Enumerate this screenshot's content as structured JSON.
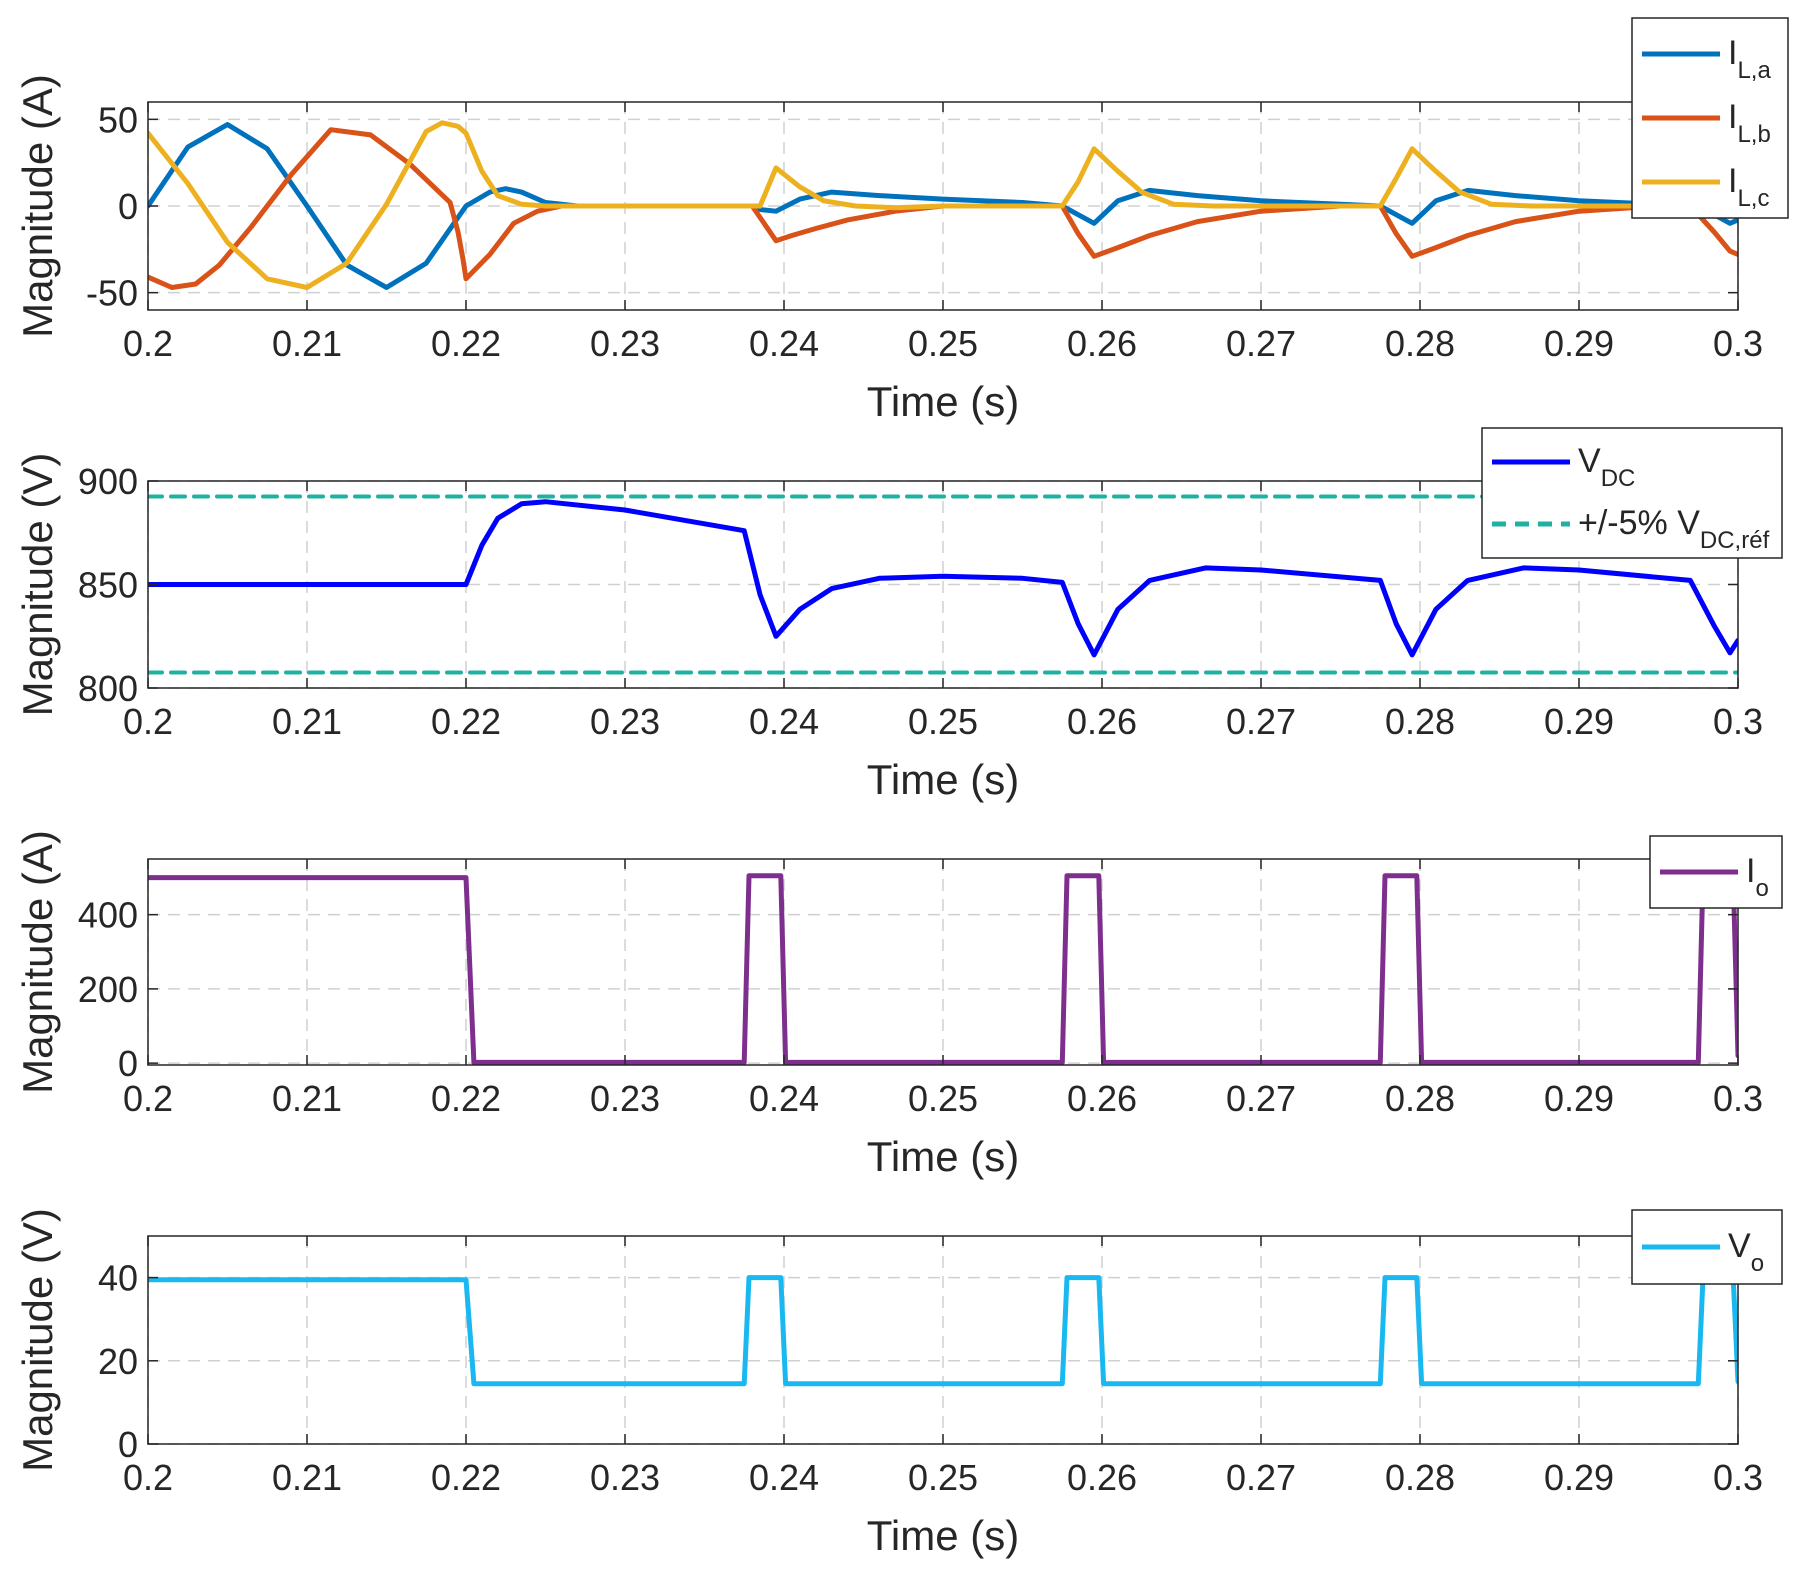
{
  "figure": {
    "colors": {
      "axis": "#262626",
      "grid": "#d0d0d0",
      "background": "#ffffff"
    }
  },
  "chart_data": [
    {
      "type": "line",
      "xlabel": "Time (s)",
      "ylabel": "Magnitude (A)",
      "xlim": [
        0.2,
        0.3
      ],
      "ylim": [
        -60,
        60
      ],
      "xticks": [
        0.2,
        0.21,
        0.22,
        0.23,
        0.24,
        0.25,
        0.26,
        0.27,
        0.28,
        0.29,
        0.3
      ],
      "xtick_labels": [
        "0.2",
        "0.21",
        "0.22",
        "0.23",
        "0.24",
        "0.25",
        "0.26",
        "0.27",
        "0.28",
        "0.29",
        "0.3"
      ],
      "yticks": [
        -50,
        0,
        50
      ],
      "ytick_labels": [
        "-50",
        "0",
        "50"
      ],
      "grid": true,
      "legend_position": "top-right",
      "series": [
        {
          "name": "I_L,a",
          "label_main": "I",
          "label_sub": "L,a",
          "color": "#0072BD",
          "x": [
            0.2,
            0.2025,
            0.205,
            0.2075,
            0.21,
            0.2125,
            0.215,
            0.2175,
            0.22,
            0.2215,
            0.2225,
            0.2235,
            0.225,
            0.227,
            0.23,
            0.235,
            0.238,
            0.2385,
            0.2395,
            0.241,
            0.243,
            0.246,
            0.25,
            0.255,
            0.2575,
            0.2585,
            0.2595,
            0.261,
            0.263,
            0.266,
            0.27,
            0.275,
            0.2775,
            0.2785,
            0.2795,
            0.281,
            0.283,
            0.286,
            0.29,
            0.295,
            0.297,
            0.2985,
            0.2995,
            0.3
          ],
          "y": [
            0,
            34,
            47,
            33,
            0,
            -34,
            -47,
            -33,
            0,
            8,
            10,
            8,
            2,
            0,
            0,
            0,
            0,
            -2,
            -3,
            4,
            8,
            6,
            4,
            2,
            0,
            -5,
            -10,
            3,
            9,
            6,
            3,
            1,
            0,
            -5,
            -10,
            3,
            9,
            6,
            3,
            1,
            0,
            -5,
            -10,
            -8
          ]
        },
        {
          "name": "I_L,b",
          "label_main": "I",
          "label_sub": "L,b",
          "color": "#D95319",
          "x": [
            0.2,
            0.2015,
            0.203,
            0.2045,
            0.2065,
            0.209,
            0.2115,
            0.214,
            0.2165,
            0.219,
            0.2195,
            0.2198,
            0.22,
            0.2215,
            0.223,
            0.2245,
            0.226,
            0.228,
            0.232,
            0.236,
            0.238,
            0.2395,
            0.2405,
            0.242,
            0.244,
            0.247,
            0.25,
            0.255,
            0.2575,
            0.2585,
            0.2595,
            0.261,
            0.263,
            0.266,
            0.27,
            0.275,
            0.2775,
            0.2785,
            0.2795,
            0.281,
            0.283,
            0.286,
            0.29,
            0.295,
            0.297,
            0.2985,
            0.2995,
            0.3
          ],
          "y": [
            -41,
            -47,
            -45,
            -34,
            -12,
            18,
            44,
            41,
            24,
            2,
            -15,
            -30,
            -42,
            -28,
            -10,
            -3,
            0,
            0,
            0,
            0,
            0,
            -20,
            -17,
            -13,
            -8,
            -3,
            0,
            0,
            0,
            -16,
            -29,
            -24,
            -17,
            -9,
            -3,
            0,
            0,
            -16,
            -29,
            -24,
            -17,
            -9,
            -3,
            0,
            0,
            -15,
            -26,
            -28
          ]
        },
        {
          "name": "I_L,c",
          "label_main": "I",
          "label_sub": "L,c",
          "color": "#EDB120",
          "x": [
            0.2,
            0.2025,
            0.205,
            0.2075,
            0.21,
            0.2125,
            0.215,
            0.2175,
            0.2185,
            0.2195,
            0.22,
            0.221,
            0.222,
            0.2235,
            0.225,
            0.23,
            0.235,
            0.2385,
            0.2395,
            0.241,
            0.2425,
            0.2445,
            0.247,
            0.25,
            0.255,
            0.2575,
            0.2585,
            0.2595,
            0.261,
            0.2625,
            0.2645,
            0.267,
            0.27,
            0.275,
            0.2775,
            0.2785,
            0.2795,
            0.281,
            0.2825,
            0.2845,
            0.287,
            0.29,
            0.295,
            0.2975,
            0.299,
            0.3
          ],
          "y": [
            42,
            13,
            -21,
            -42,
            -47,
            -33,
            1,
            43,
            48,
            46,
            42,
            20,
            6,
            1,
            0,
            0,
            0,
            0,
            22,
            11,
            3,
            0,
            -1,
            0,
            0,
            0,
            14,
            33,
            20,
            8,
            1,
            0,
            0,
            0,
            0,
            16,
            33,
            20,
            8,
            1,
            0,
            0,
            0,
            0,
            0,
            0
          ]
        }
      ]
    },
    {
      "type": "line",
      "xlabel": "Time (s)",
      "ylabel": "Magnitude (V)",
      "xlim": [
        0.2,
        0.3
      ],
      "ylim": [
        800,
        900
      ],
      "xticks": [
        0.2,
        0.21,
        0.22,
        0.23,
        0.24,
        0.25,
        0.26,
        0.27,
        0.28,
        0.29,
        0.3
      ],
      "xtick_labels": [
        "0.2",
        "0.21",
        "0.22",
        "0.23",
        "0.24",
        "0.25",
        "0.26",
        "0.27",
        "0.28",
        "0.29",
        "0.3"
      ],
      "yticks": [
        800,
        850,
        900
      ],
      "ytick_labels": [
        "800",
        "850",
        "900"
      ],
      "grid": true,
      "legend_position": "top-right",
      "series": [
        {
          "name": "V_DC",
          "label_main": "V",
          "label_sub": "DC",
          "color": "#0000FF",
          "dash": false,
          "x": [
            0.2,
            0.21,
            0.22,
            0.221,
            0.222,
            0.2235,
            0.225,
            0.23,
            0.2375,
            0.2385,
            0.2395,
            0.241,
            0.243,
            0.246,
            0.25,
            0.255,
            0.2575,
            0.2585,
            0.2595,
            0.261,
            0.263,
            0.2665,
            0.27,
            0.2775,
            0.2785,
            0.2795,
            0.281,
            0.283,
            0.2865,
            0.29,
            0.297,
            0.2985,
            0.2995,
            0.3
          ],
          "y": [
            850,
            850,
            850,
            869,
            882,
            889,
            890,
            886,
            876,
            845,
            825,
            838,
            848,
            853,
            854,
            853,
            851,
            831,
            816,
            838,
            852,
            858,
            857,
            852,
            831,
            816,
            838,
            852,
            858,
            857,
            852,
            830,
            817,
            823
          ]
        },
        {
          "name": "+/-5% V_DC,réf",
          "label_main": "+/-5% V",
          "label_sub": "DC,réf",
          "color": "#20B2A0",
          "dash": true,
          "x": [
            0.2,
            0.3
          ],
          "y": [
            892.5,
            892.5
          ],
          "y2": [
            807.5,
            807.5
          ]
        }
      ]
    },
    {
      "type": "line",
      "xlabel": "Time (s)",
      "ylabel": "Magnitude (A)",
      "xlim": [
        0.2,
        0.3
      ],
      "ylim": [
        -5,
        550
      ],
      "xticks": [
        0.2,
        0.21,
        0.22,
        0.23,
        0.24,
        0.25,
        0.26,
        0.27,
        0.28,
        0.29,
        0.3
      ],
      "xtick_labels": [
        "0.2",
        "0.21",
        "0.22",
        "0.23",
        "0.24",
        "0.25",
        "0.26",
        "0.27",
        "0.28",
        "0.29",
        "0.3"
      ],
      "yticks": [
        0,
        200,
        400
      ],
      "ytick_labels": [
        "0",
        "200",
        "400"
      ],
      "grid": true,
      "legend_position": "top-right",
      "series": [
        {
          "name": "I_o",
          "label_main": "I",
          "label_sub": "o",
          "color": "#7E2F8E",
          "x": [
            0.2,
            0.22,
            0.2205,
            0.2375,
            0.2378,
            0.2398,
            0.2401,
            0.2575,
            0.2578,
            0.2598,
            0.2601,
            0.2775,
            0.2778,
            0.2798,
            0.2801,
            0.2975,
            0.2978,
            0.2997,
            0.3
          ],
          "y": [
            500,
            500,
            2,
            2,
            505,
            505,
            2,
            2,
            505,
            505,
            2,
            2,
            505,
            505,
            2,
            2,
            505,
            505,
            20
          ]
        }
      ]
    },
    {
      "type": "line",
      "xlabel": "Time (s)",
      "ylabel": "Magnitude (V)",
      "xlim": [
        0.2,
        0.3
      ],
      "ylim": [
        0,
        50
      ],
      "xticks": [
        0.2,
        0.21,
        0.22,
        0.23,
        0.24,
        0.25,
        0.26,
        0.27,
        0.28,
        0.29,
        0.3
      ],
      "xtick_labels": [
        "0.2",
        "0.21",
        "0.22",
        "0.23",
        "0.24",
        "0.25",
        "0.26",
        "0.27",
        "0.28",
        "0.29",
        "0.3"
      ],
      "yticks": [
        0,
        20,
        40
      ],
      "ytick_labels": [
        "0",
        "20",
        "40"
      ],
      "grid": true,
      "legend_position": "top-right",
      "series": [
        {
          "name": "V_o",
          "label_main": "V",
          "label_sub": "o",
          "color": "#1AB8F0",
          "x": [
            0.2,
            0.22,
            0.2205,
            0.2375,
            0.2378,
            0.2398,
            0.2401,
            0.2575,
            0.2578,
            0.2598,
            0.2601,
            0.2775,
            0.2778,
            0.2798,
            0.2801,
            0.2975,
            0.2978,
            0.2997,
            0.3
          ],
          "y": [
            39.5,
            39.5,
            14.5,
            14.5,
            40,
            40,
            14.5,
            14.5,
            40,
            40,
            14.5,
            14.5,
            40,
            40,
            14.5,
            14.5,
            40,
            40,
            15
          ]
        }
      ]
    }
  ]
}
